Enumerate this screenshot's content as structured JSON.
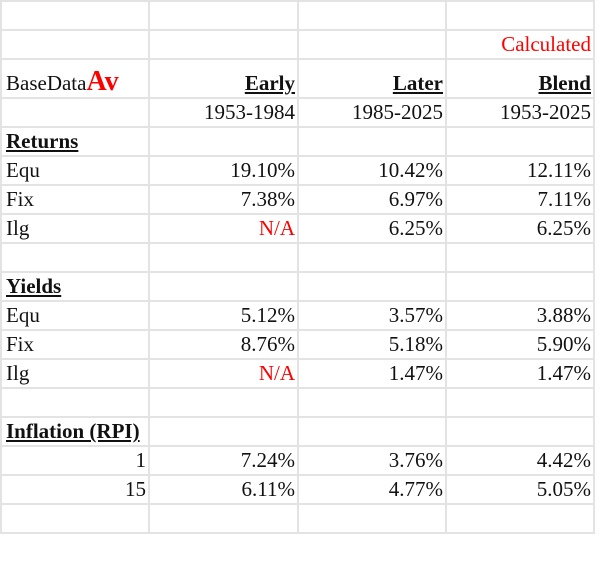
{
  "sheet": {
    "calculated_label": "Calculated",
    "title_prefix": "BaseData",
    "title_suffix": "Av",
    "columns": [
      {
        "header": "Early",
        "period": "1953-1984"
      },
      {
        "header": "Later",
        "period": "1985-2025"
      },
      {
        "header": "Blend",
        "period": "1953-2025"
      }
    ],
    "returns": {
      "heading": "Returns",
      "rows": [
        {
          "label": "Equ",
          "early": "19.10%",
          "later": "10.42%",
          "blend": "12.11%"
        },
        {
          "label": "Fix",
          "early": "7.38%",
          "later": "6.97%",
          "blend": "7.11%"
        },
        {
          "label": "Ilg",
          "early": "N/A",
          "later": "6.25%",
          "blend": "6.25%"
        }
      ]
    },
    "yields": {
      "heading": "Yields",
      "rows": [
        {
          "label": "Equ",
          "early": "5.12%",
          "later": "3.57%",
          "blend": "3.88%"
        },
        {
          "label": "Fix",
          "early": "8.76%",
          "later": "5.18%",
          "blend": "5.90%"
        },
        {
          "label": "Ilg",
          "early": "N/A",
          "later": "1.47%",
          "blend": "1.47%"
        }
      ]
    },
    "inflation": {
      "heading": "Inflation (RPI)",
      "rows": [
        {
          "label": "1",
          "early": "7.24%",
          "later": "3.76%",
          "blend": "4.42%"
        },
        {
          "label": "15",
          "early": "6.11%",
          "later": "4.77%",
          "blend": "5.05%"
        }
      ]
    },
    "colors": {
      "accent_red": "#ff0000",
      "text": "#111111",
      "gridline": "#e3e3e3"
    }
  }
}
